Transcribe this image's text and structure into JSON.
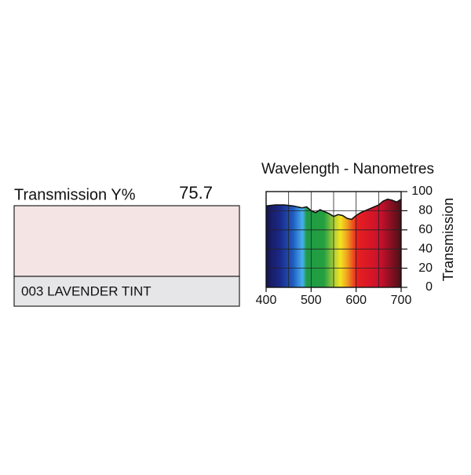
{
  "swatch": {
    "label": "Transmission Y%",
    "value": "75.7",
    "name": "003 LAVENDER TINT",
    "color": "#f4e4e4"
  },
  "chart_data": {
    "type": "area",
    "title": "Wavelength - Nanometres",
    "y_label": "Transmission",
    "x": [
      400,
      420,
      440,
      460,
      470,
      480,
      490,
      500,
      510,
      520,
      530,
      540,
      550,
      560,
      570,
      580,
      590,
      600,
      610,
      620,
      630,
      640,
      650,
      660,
      670,
      680,
      690,
      700
    ],
    "values": [
      85,
      86,
      86,
      85,
      84,
      83,
      84,
      80,
      78,
      81,
      79,
      77,
      74,
      76,
      75,
      72,
      71,
      75,
      78,
      80,
      82,
      84,
      86,
      90,
      92,
      91,
      89,
      92
    ],
    "xlim": [
      400,
      700
    ],
    "ylim": [
      0,
      100
    ],
    "xticks": [
      400,
      500,
      600,
      700
    ],
    "minor_xticks": [
      450,
      550,
      650
    ],
    "yticks": [
      0,
      20,
      40,
      60,
      80,
      100
    ],
    "grid": true
  }
}
